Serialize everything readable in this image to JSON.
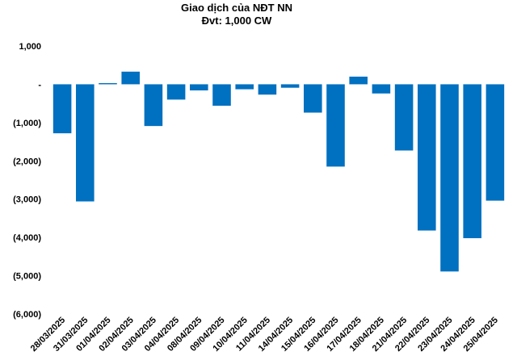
{
  "chart_data": {
    "type": "bar",
    "title": "Giao dịch của NĐT NN",
    "subtitle": "Đvt: 1,000 CW",
    "xlabel": "",
    "ylabel": "",
    "ylim": [
      -6000,
      1000
    ],
    "grid": false,
    "legend": "none",
    "bar_color": "#0070C0",
    "categories": [
      "28/03/2025",
      "31/03/2025",
      "01/04/2025",
      "02/04/2025",
      "03/04/2025",
      "04/04/2025",
      "08/04/2025",
      "09/04/2025",
      "10/04/2025",
      "11/04/2025",
      "14/04/2025",
      "15/04/2025",
      "16/04/2025",
      "17/04/2025",
      "18/04/2025",
      "21/04/2025",
      "22/04/2025",
      "23/04/2025",
      "24/04/2025",
      "25/04/2025"
    ],
    "values": [
      -1280,
      -3060,
      30,
      330,
      -1090,
      -400,
      -160,
      -560,
      -130,
      -270,
      -90,
      -740,
      -2150,
      200,
      -240,
      -1730,
      -3820,
      -4890,
      -4020,
      -3040
    ],
    "ytick_labels": [
      "1,000",
      "-",
      "(1,000)",
      "(2,000)",
      "(3,000)",
      "(4,000)",
      "(5,000)",
      "(6,000)"
    ],
    "ytick_values": [
      1000,
      0,
      -1000,
      -2000,
      -3000,
      -4000,
      -5000,
      -6000
    ]
  }
}
